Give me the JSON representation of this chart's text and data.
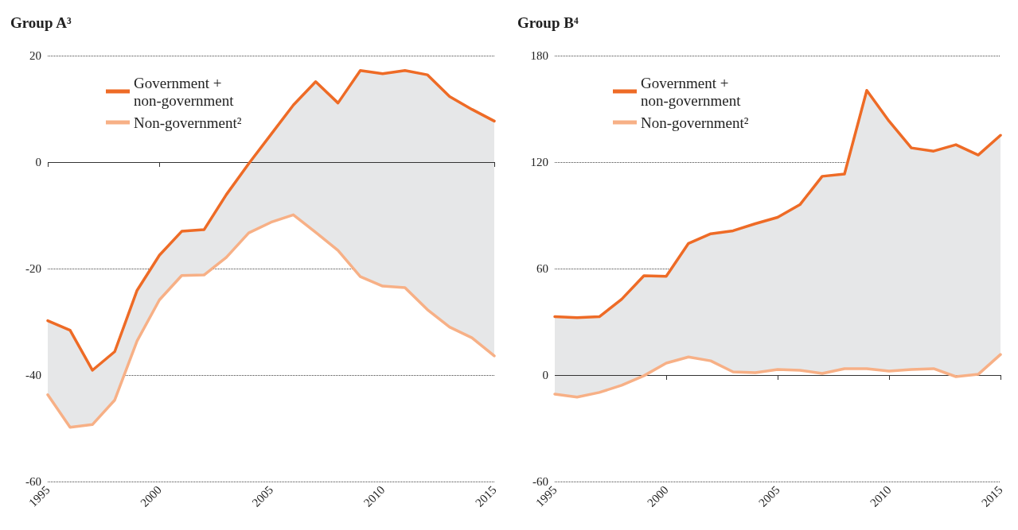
{
  "chart_data": [
    {
      "type": "line",
      "title": "Group A³",
      "x": [
        1995,
        1996,
        1997,
        1998,
        1999,
        2000,
        2001,
        2002,
        2003,
        2004,
        2005,
        2006,
        2007,
        2008,
        2009,
        2010,
        2011,
        2012,
        2013,
        2014,
        2015
      ],
      "xlim": [
        1995,
        2015
      ],
      "xticks": [
        1995,
        2000,
        2005,
        2010,
        2015
      ],
      "ylim": [
        -60,
        20
      ],
      "yticks": [
        -60,
        -40,
        -20,
        0,
        20
      ],
      "grid": "y",
      "legend": "top left",
      "line_style": "solid",
      "ref_lines": [
        {
          "axis": "y",
          "value": 0,
          "color": "#333333"
        }
      ],
      "series": [
        {
          "name": "Government + non-government",
          "color": "#ee6b26",
          "values": [
            -29.8,
            -31.6,
            -39.1,
            -35.6,
            -24.1,
            -17.5,
            -13.0,
            -12.7,
            -6.1,
            -0.3,
            5.2,
            10.7,
            15.1,
            11.1,
            17.2,
            16.6,
            17.2,
            16.4,
            12.3,
            9.9,
            7.7
          ],
          "upper": [
            -29.8,
            -31.6,
            -39.1,
            -35.6,
            -24.1,
            -17.5,
            -13.0,
            -12.7,
            -6.1,
            -0.3,
            5.2,
            10.7,
            15.1,
            11.1,
            17.2,
            16.6,
            17.2,
            16.4,
            12.3,
            9.9,
            7.7
          ],
          "lower": [
            -43.7,
            -49.8,
            -49.3,
            -44.7,
            -33.6,
            -25.9,
            -21.3,
            -21.2,
            -17.9,
            -13.3,
            -11.3,
            -9.9,
            -13.2,
            -16.6,
            -21.5,
            -23.3,
            -23.6,
            -27.7,
            -31.0,
            -33.0,
            -36.4
          ]
        },
        {
          "name": "Non-government²",
          "color": "#f7b086",
          "values": [
            -43.7,
            -49.8,
            -49.3,
            -44.7,
            -33.6,
            -25.9,
            -21.3,
            -21.2,
            -17.9,
            -13.3,
            -11.3,
            -9.9,
            -13.2,
            -16.6,
            -21.5,
            -23.3,
            -23.6,
            -27.7,
            -31.0,
            -33.0,
            -36.4
          ]
        }
      ]
    },
    {
      "type": "line",
      "title": "Group B⁴",
      "x": [
        1995,
        1996,
        1997,
        1998,
        1999,
        2000,
        2001,
        2002,
        2003,
        2004,
        2005,
        2006,
        2007,
        2008,
        2009,
        2010,
        2011,
        2012,
        2013,
        2014,
        2015
      ],
      "xlim": [
        1995,
        2015
      ],
      "xticks": [
        1995,
        2000,
        2005,
        2010,
        2015
      ],
      "ylim": [
        -60,
        180
      ],
      "yticks": [
        -60,
        0,
        60,
        120,
        180
      ],
      "grid": "y",
      "legend": "top left",
      "line_style": "solid",
      "ref_lines": [
        {
          "axis": "y",
          "value": 0,
          "color": "#333333"
        }
      ],
      "series": [
        {
          "name": "Government + non-government",
          "color": "#ee6b26",
          "values": [
            32.9,
            32.4,
            32.9,
            42.7,
            56.0,
            55.6,
            74.2,
            79.6,
            81.3,
            85.3,
            88.9,
            96.0,
            112,
            113.3,
            160.4,
            143.1,
            128,
            126.2,
            129.8,
            124,
            135.1
          ],
          "upper": [
            32.9,
            32.4,
            32.9,
            42.7,
            56.0,
            55.6,
            74.2,
            79.6,
            81.3,
            85.3,
            88.9,
            96.0,
            112,
            113.3,
            160.4,
            143.1,
            128,
            126.2,
            129.8,
            124,
            135.1
          ],
          "lower": [
            -10.7,
            -12.4,
            -9.8,
            -5.8,
            -0.4,
            6.7,
            10.2,
            8.0,
            1.8,
            1.3,
            3.1,
            2.7,
            0.9,
            3.6,
            3.6,
            2.2,
            3.1,
            3.6,
            -0.9,
            0.4,
            11.6
          ]
        },
        {
          "name": "Non-government²",
          "color": "#f7b086",
          "values": [
            -10.7,
            -12.4,
            -9.8,
            -5.8,
            -0.4,
            6.7,
            10.2,
            8.0,
            1.8,
            1.3,
            3.1,
            2.7,
            0.9,
            3.6,
            3.6,
            2.2,
            3.1,
            3.6,
            -0.9,
            0.4,
            11.6
          ]
        }
      ]
    }
  ]
}
